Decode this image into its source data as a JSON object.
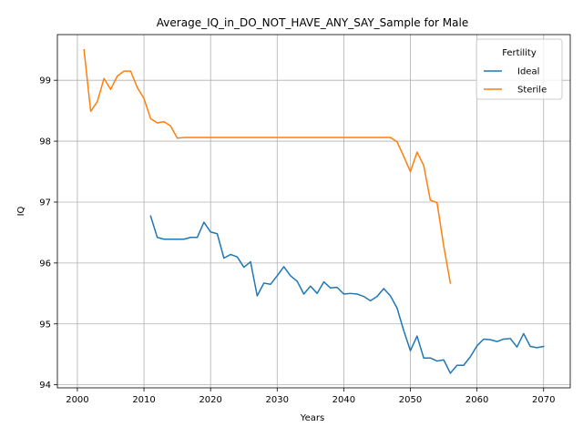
{
  "chart_data": {
    "type": "line",
    "title": "Average_IQ_in_DO_NOT_HAVE_ANY_SAY_Sample for Male",
    "xlabel": "Years",
    "ylabel": "IQ",
    "xlim": [
      1997,
      2074
    ],
    "ylim": [
      93.95,
      99.75
    ],
    "xticks": [
      2000,
      2010,
      2020,
      2030,
      2040,
      2050,
      2060,
      2070
    ],
    "yticks": [
      94,
      95,
      96,
      97,
      98,
      99
    ],
    "grid": true,
    "legend": {
      "title": "Fertility",
      "placement": "top-right"
    },
    "series": [
      {
        "name": "Ideal",
        "color": "#1f77b4",
        "x": [
          2011,
          2012,
          2013,
          2014,
          2015,
          2016,
          2017,
          2018,
          2019,
          2020,
          2021,
          2022,
          2023,
          2024,
          2025,
          2026,
          2027,
          2028,
          2029,
          2030,
          2031,
          2032,
          2033,
          2034,
          2035,
          2036,
          2037,
          2038,
          2039,
          2040,
          2041,
          2042,
          2043,
          2044,
          2045,
          2046,
          2047,
          2048,
          2049,
          2050,
          2051,
          2052,
          2053,
          2054,
          2055,
          2056,
          2057,
          2058,
          2059,
          2060,
          2061,
          2062,
          2063,
          2064,
          2065,
          2066,
          2067,
          2068,
          2069,
          2070
        ],
        "y": [
          96.77,
          96.42,
          96.39,
          96.39,
          96.39,
          96.39,
          96.42,
          96.42,
          96.67,
          96.51,
          96.48,
          96.08,
          96.14,
          96.1,
          95.93,
          96.02,
          95.46,
          95.67,
          95.65,
          95.79,
          95.94,
          95.79,
          95.7,
          95.49,
          95.62,
          95.5,
          95.69,
          95.59,
          95.6,
          95.49,
          95.5,
          95.49,
          95.45,
          95.38,
          95.45,
          95.58,
          95.46,
          95.26,
          94.89,
          94.56,
          94.8,
          94.44,
          94.44,
          94.39,
          94.41,
          94.19,
          94.32,
          94.32,
          94.46,
          94.64,
          94.75,
          94.74,
          94.71,
          94.75,
          94.76,
          94.62,
          94.84,
          94.63,
          94.61,
          94.63
        ]
      },
      {
        "name": "Sterile",
        "color": "#ff7f0e",
        "x": [
          2001,
          2002,
          2003,
          2004,
          2005,
          2006,
          2007,
          2008,
          2009,
          2010,
          2011,
          2012,
          2013,
          2014,
          2015,
          2016,
          2017,
          2018,
          2019,
          2020,
          2021,
          2022,
          2023,
          2024,
          2025,
          2026,
          2027,
          2028,
          2029,
          2030,
          2031,
          2032,
          2033,
          2034,
          2035,
          2036,
          2037,
          2038,
          2039,
          2040,
          2041,
          2042,
          2043,
          2044,
          2045,
          2046,
          2047,
          2048,
          2049,
          2050,
          2051,
          2052,
          2053,
          2054,
          2055,
          2056
        ],
        "y": [
          99.5,
          98.49,
          98.65,
          99.03,
          98.85,
          99.07,
          99.15,
          99.15,
          98.88,
          98.7,
          98.37,
          98.3,
          98.32,
          98.25,
          98.05,
          98.06,
          98.06,
          98.06,
          98.06,
          98.06,
          98.06,
          98.06,
          98.06,
          98.06,
          98.06,
          98.06,
          98.06,
          98.06,
          98.06,
          98.06,
          98.06,
          98.06,
          98.06,
          98.06,
          98.06,
          98.06,
          98.06,
          98.06,
          98.06,
          98.06,
          98.06,
          98.06,
          98.06,
          98.06,
          98.06,
          98.06,
          98.06,
          97.99,
          97.75,
          97.5,
          97.82,
          97.6,
          97.03,
          96.99,
          96.28,
          95.67
        ]
      }
    ]
  }
}
